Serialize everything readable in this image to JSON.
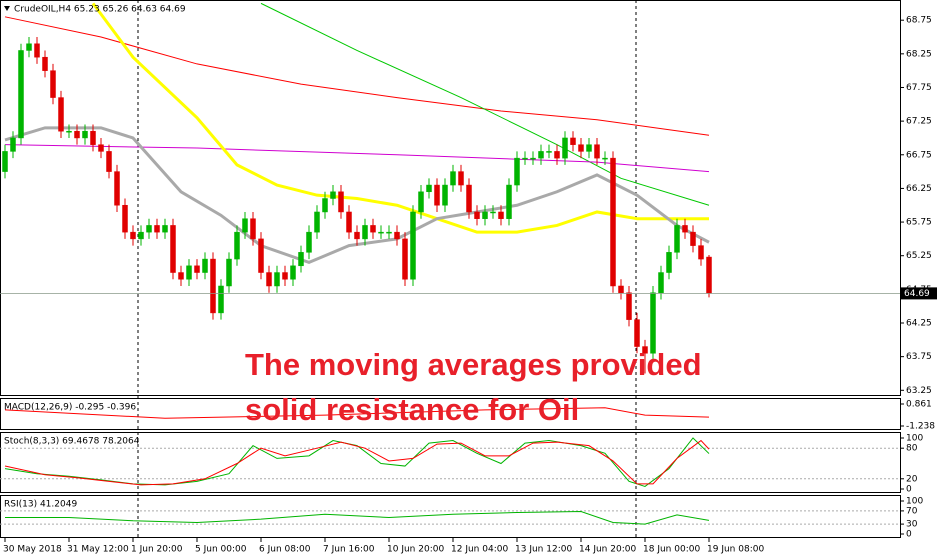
{
  "chart_data": {
    "type": "candlestick",
    "title": "CrudeOIL,H4 65.23 65.26 64.63 64.69",
    "annotation": [
      "The moving averages provided",
      "solid resistance for Oil"
    ],
    "ylim": [
      63.18,
      69.05
    ],
    "yticks": [
      63.25,
      63.75,
      64.25,
      64.75,
      65.25,
      65.75,
      66.25,
      66.75,
      67.25,
      67.75,
      68.25,
      68.75
    ],
    "xticks": [
      {
        "value": 0,
        "label": "30 May 2018"
      },
      {
        "value": 8,
        "label": "31 May 12:00"
      },
      {
        "value": 16,
        "label": "1 Jun 20:00"
      },
      {
        "value": 24,
        "label": "5 Jun 00:00"
      },
      {
        "value": 32,
        "label": "6 Jun 08:00"
      },
      {
        "value": 40,
        "label": "7 Jun 16:00"
      },
      {
        "value": 48,
        "label": "10 Jun 20:00"
      },
      {
        "value": 56,
        "label": "12 Jun 04:00"
      },
      {
        "value": 64,
        "label": "13 Jun 12:00"
      },
      {
        "value": 72,
        "label": "14 Jun 20:00"
      },
      {
        "value": 80,
        "label": "18 Jun 00:00"
      },
      {
        "value": 88,
        "label": "19 Jun 08:00"
      }
    ],
    "up_color": "#00b400",
    "down_color": "#e00000",
    "candles": [
      [
        66.5,
        66.9,
        66.4,
        66.8
      ],
      [
        66.8,
        67.1,
        66.7,
        67.0
      ],
      [
        67.0,
        68.4,
        66.9,
        68.3
      ],
      [
        68.3,
        68.5,
        68.2,
        68.4
      ],
      [
        68.4,
        68.5,
        68.1,
        68.2
      ],
      [
        68.2,
        68.3,
        67.9,
        68.0
      ],
      [
        68.0,
        68.1,
        67.5,
        67.6
      ],
      [
        67.6,
        67.7,
        67.0,
        67.1
      ],
      [
        67.1,
        67.2,
        67.0,
        67.1
      ],
      [
        67.1,
        67.2,
        66.9,
        67.0
      ],
      [
        67.0,
        67.2,
        66.9,
        67.1
      ],
      [
        67.1,
        67.2,
        66.8,
        66.9
      ],
      [
        66.9,
        67.0,
        66.7,
        66.8
      ],
      [
        66.8,
        66.9,
        66.4,
        66.5
      ],
      [
        66.5,
        66.6,
        65.9,
        66.0
      ],
      [
        66.0,
        66.1,
        65.5,
        65.6
      ],
      [
        65.6,
        65.7,
        65.4,
        65.5
      ],
      [
        65.5,
        65.7,
        65.4,
        65.6
      ],
      [
        65.6,
        65.8,
        65.5,
        65.7
      ],
      [
        65.7,
        65.8,
        65.5,
        65.6
      ],
      [
        65.6,
        65.8,
        65.5,
        65.7
      ],
      [
        65.7,
        65.8,
        64.9,
        65.0
      ],
      [
        65.0,
        65.1,
        64.8,
        64.9
      ],
      [
        64.9,
        65.2,
        64.8,
        65.1
      ],
      [
        65.1,
        65.2,
        64.9,
        65.0
      ],
      [
        65.0,
        65.3,
        64.9,
        65.2
      ],
      [
        65.2,
        65.3,
        64.3,
        64.4
      ],
      [
        64.4,
        64.9,
        64.3,
        64.8
      ],
      [
        64.8,
        65.3,
        64.7,
        65.2
      ],
      [
        65.2,
        65.7,
        65.1,
        65.6
      ],
      [
        65.6,
        65.9,
        65.5,
        65.8
      ],
      [
        65.8,
        65.9,
        65.4,
        65.5
      ],
      [
        65.5,
        65.6,
        64.9,
        65.0
      ],
      [
        65.0,
        65.1,
        64.7,
        64.8
      ],
      [
        64.8,
        65.1,
        64.7,
        65.0
      ],
      [
        65.0,
        65.1,
        64.8,
        64.9
      ],
      [
        64.9,
        65.2,
        64.8,
        65.1
      ],
      [
        65.1,
        65.4,
        65.0,
        65.3
      ],
      [
        65.3,
        65.7,
        65.2,
        65.6
      ],
      [
        65.6,
        66.0,
        65.5,
        65.9
      ],
      [
        65.9,
        66.2,
        65.8,
        66.1
      ],
      [
        66.1,
        66.3,
        66.0,
        66.2
      ],
      [
        66.2,
        66.3,
        65.8,
        65.9
      ],
      [
        65.9,
        66.0,
        65.5,
        65.6
      ],
      [
        65.6,
        65.7,
        65.4,
        65.5
      ],
      [
        65.5,
        65.8,
        65.4,
        65.7
      ],
      [
        65.7,
        65.8,
        65.5,
        65.6
      ],
      [
        65.6,
        65.7,
        65.5,
        65.6
      ],
      [
        65.6,
        65.7,
        65.5,
        65.6
      ],
      [
        65.6,
        65.7,
        65.4,
        65.5
      ],
      [
        65.5,
        65.6,
        64.8,
        64.9
      ],
      [
        64.9,
        66.0,
        64.8,
        65.9
      ],
      [
        65.9,
        66.3,
        65.8,
        66.2
      ],
      [
        66.2,
        66.4,
        66.1,
        66.3
      ],
      [
        66.3,
        66.4,
        65.9,
        66.0
      ],
      [
        66.0,
        66.4,
        65.9,
        66.3
      ],
      [
        66.3,
        66.6,
        66.2,
        66.5
      ],
      [
        66.5,
        66.6,
        66.2,
        66.3
      ],
      [
        66.3,
        66.4,
        65.8,
        65.9
      ],
      [
        65.9,
        66.0,
        65.7,
        65.8
      ],
      [
        65.8,
        66.0,
        65.7,
        65.9
      ],
      [
        65.9,
        66.0,
        65.8,
        65.9
      ],
      [
        65.9,
        66.0,
        65.7,
        65.8
      ],
      [
        65.8,
        66.4,
        65.7,
        66.3
      ],
      [
        66.3,
        66.8,
        66.2,
        66.7
      ],
      [
        66.7,
        66.8,
        66.6,
        66.7
      ],
      [
        66.7,
        66.8,
        66.6,
        66.7
      ],
      [
        66.7,
        66.9,
        66.6,
        66.8
      ],
      [
        66.8,
        66.9,
        66.7,
        66.8
      ],
      [
        66.8,
        66.9,
        66.6,
        66.7
      ],
      [
        66.7,
        67.1,
        66.6,
        67.0
      ],
      [
        67.0,
        67.1,
        66.8,
        66.9
      ],
      [
        66.9,
        67.0,
        66.7,
        66.8
      ],
      [
        66.8,
        67.0,
        66.7,
        66.9
      ],
      [
        66.9,
        67.0,
        66.6,
        66.7
      ],
      [
        66.7,
        66.8,
        66.6,
        66.7
      ],
      [
        66.7,
        66.8,
        64.7,
        64.8
      ],
      [
        64.8,
        64.9,
        64.6,
        64.7
      ],
      [
        64.7,
        64.8,
        64.2,
        64.3
      ],
      [
        64.3,
        64.4,
        63.8,
        63.9
      ],
      [
        63.9,
        64.0,
        63.5,
        63.8
      ],
      [
        63.8,
        64.8,
        63.7,
        64.7
      ],
      [
        64.7,
        65.1,
        64.6,
        65.0
      ],
      [
        65.0,
        65.4,
        64.9,
        65.3
      ],
      [
        65.3,
        65.8,
        65.2,
        65.7
      ],
      [
        65.7,
        65.8,
        65.5,
        65.6
      ],
      [
        65.6,
        65.7,
        65.3,
        65.4
      ],
      [
        65.4,
        65.5,
        65.1,
        65.2
      ],
      [
        65.23,
        65.26,
        64.63,
        64.69
      ]
    ],
    "series": [
      {
        "color": "#ff0000",
        "width": 1,
        "x": [
          0,
          12,
          24,
          37,
          49,
          62,
          74,
          88
        ],
        "values": [
          68.8,
          68.5,
          68.1,
          67.8,
          67.6,
          67.4,
          67.27,
          67.04
        ]
      },
      {
        "color": "#00c800",
        "width": 1,
        "x": [
          32,
          44,
          57,
          69,
          77,
          88
        ],
        "values": [
          69.0,
          68.3,
          67.6,
          66.9,
          66.4,
          66.0
        ]
      },
      {
        "color": "#d000d0",
        "width": 1,
        "x": [
          0,
          24,
          49,
          74,
          88
        ],
        "values": [
          66.9,
          66.85,
          66.75,
          66.64,
          66.5
        ]
      },
      {
        "color": "#ffff00",
        "width": 3,
        "x": [
          11,
          16,
          24,
          29,
          34,
          39,
          44,
          49,
          54,
          59,
          64,
          69,
          74,
          79,
          88
        ],
        "values": [
          69.0,
          68.2,
          67.3,
          66.6,
          66.3,
          66.15,
          66.1,
          66.0,
          65.8,
          65.6,
          65.6,
          65.7,
          65.9,
          65.8,
          65.8
        ]
      },
      {
        "color": "#a9a9a9",
        "width": 3,
        "x": [
          0,
          5,
          12,
          16,
          22,
          27,
          32,
          38,
          43,
          49,
          54,
          59,
          64,
          69,
          74,
          79,
          84,
          88
        ],
        "values": [
          66.97,
          67.15,
          67.15,
          67.0,
          66.2,
          65.85,
          65.4,
          65.15,
          65.4,
          65.5,
          65.8,
          65.9,
          66.0,
          66.2,
          66.45,
          66.15,
          65.7,
          65.45
        ]
      }
    ],
    "panels": [
      {
        "label": "MACD(12,26,9) -0.295 -0.396",
        "ylim": [
          -1.238,
          0.861
        ],
        "yticks": [
          -1.238,
          0.861
        ],
        "series": [
          {
            "color": "#ff0000",
            "width": 1,
            "x": [
              0,
              20,
              40,
              60,
              75,
              80,
              88
            ],
            "values": [
              0.3,
              -0.5,
              -0.2,
              0.3,
              0.5,
              -0.2,
              -0.396
            ]
          }
        ]
      },
      {
        "label": "Stoch(8,3,3) 69.4678 78.2064",
        "ylim": [
          0,
          100
        ],
        "yticks": [
          0,
          20,
          80,
          100
        ],
        "series": [
          {
            "color": "#00b400",
            "width": 1,
            "x": [
              0,
              4,
              8,
              12,
              16,
              20,
              24,
              28,
              31,
              34,
              38,
              41,
              44,
              47,
              50,
              53,
              56,
              59,
              62,
              65,
              68,
              72,
              75,
              78,
              80,
              83,
              86,
              88
            ],
            "values": [
              40,
              30,
              25,
              18,
              10,
              8,
              15,
              30,
              85,
              60,
              65,
              95,
              85,
              50,
              45,
              90,
              95,
              70,
              50,
              90,
              95,
              85,
              70,
              15,
              5,
              40,
              100,
              69.4678
            ]
          },
          {
            "color": "#ff0000",
            "width": 1,
            "x": [
              0,
              5,
              9,
              13,
              17,
              21,
              25,
              29,
              32,
              35,
              39,
              42,
              45,
              48,
              51,
              54,
              57,
              60,
              63,
              66,
              69,
              73,
              76,
              79,
              81,
              84,
              87,
              88
            ],
            "values": [
              45,
              28,
              22,
              15,
              8,
              10,
              20,
              50,
              80,
              65,
              80,
              92,
              80,
              55,
              60,
              88,
              90,
              65,
              65,
              90,
              92,
              85,
              55,
              10,
              10,
              60,
              95,
              78.2064
            ]
          }
        ]
      },
      {
        "label": "RSI(13) 41.2049",
        "ylim": [
          0,
          100
        ],
        "yticks": [
          0,
          30,
          70,
          100
        ],
        "series": [
          {
            "color": "#00b400",
            "width": 1,
            "x": [
              0,
              8,
              16,
              24,
              32,
              40,
              48,
              56,
              64,
              72,
              76,
              80,
              84,
              88
            ],
            "values": [
              50,
              50,
              40,
              35,
              45,
              60,
              50,
              60,
              65,
              68,
              35,
              30,
              58,
              41.2049
            ]
          }
        ]
      }
    ]
  }
}
